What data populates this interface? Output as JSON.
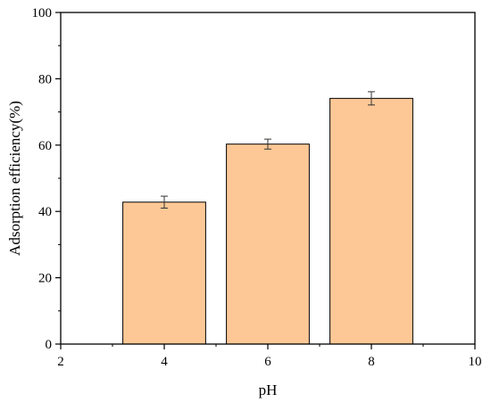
{
  "chart_data": {
    "type": "bar",
    "title": "",
    "xlabel": "pH",
    "ylabel": "Adsorption efficiency(%)",
    "x": [
      4,
      6,
      8
    ],
    "values": [
      42.8,
      60.3,
      74.1
    ],
    "errors": [
      1.8,
      1.5,
      2.0
    ],
    "bar_width": 1.6,
    "xlim": [
      2,
      10
    ],
    "ylim": [
      0,
      100
    ],
    "xticks": [
      2,
      4,
      6,
      8,
      10
    ],
    "yticks": [
      0,
      20,
      40,
      60,
      80,
      100
    ],
    "grid": false,
    "legend": "none",
    "bar_color": "#fdc896",
    "edge_color": "#000000"
  }
}
